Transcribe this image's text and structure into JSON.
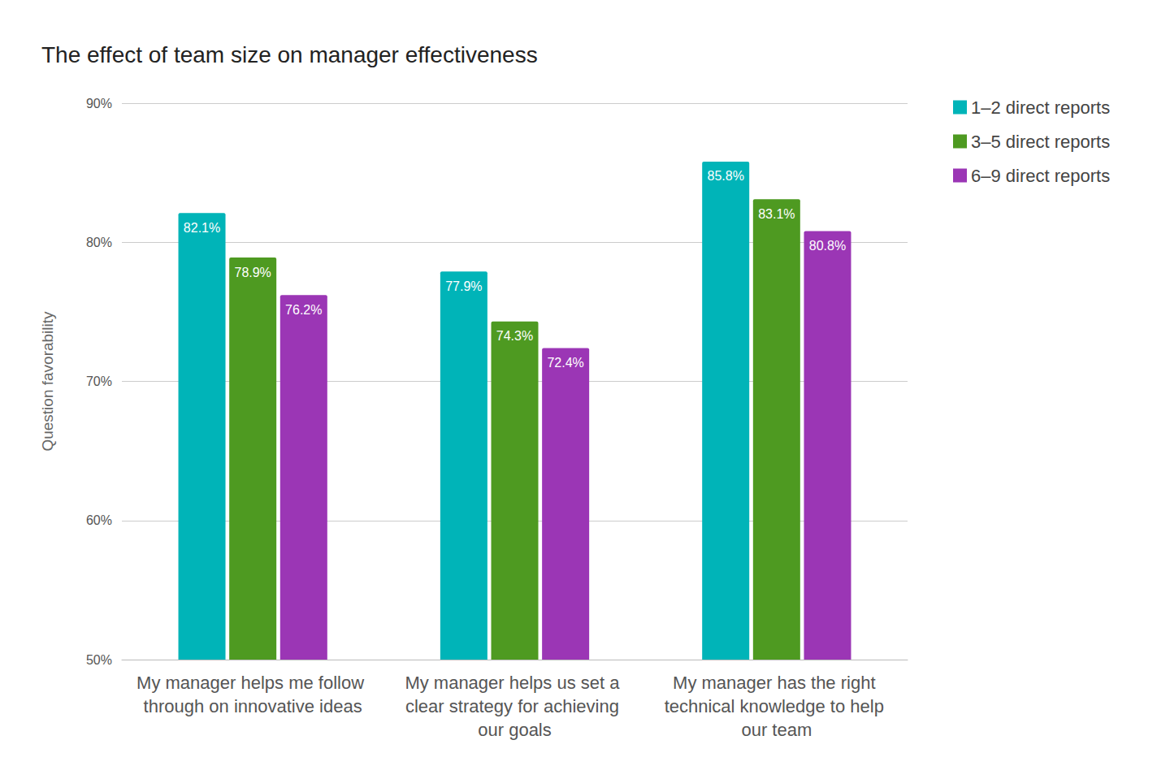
{
  "chart_data": {
    "type": "bar",
    "title": "The effect of team size on manager effectiveness",
    "y_label": "Question favorability",
    "categories": [
      "My manager helps me follow through on innovative ideas",
      "My manager helps us set a clear strategy for achieving our goals",
      "My manager has the right technical knowledge to help our team"
    ],
    "series": [
      {
        "name": "1–2 direct reports",
        "color": "#00b4b8",
        "values": [
          82.1,
          77.9,
          85.8
        ],
        "value_labels": [
          "82.1%",
          "77.9%",
          "85.8%"
        ]
      },
      {
        "name": "3–5 direct reports",
        "color": "#4e9a21",
        "values": [
          78.9,
          74.3,
          83.1
        ],
        "value_labels": [
          "78.9%",
          "74.3%",
          "83.1%"
        ]
      },
      {
        "name": "6–9 direct reports",
        "color": "#9b36b5",
        "values": [
          76.2,
          72.4,
          80.8
        ],
        "value_labels": [
          "76.2%",
          "72.4%",
          "80.8%"
        ]
      }
    ],
    "ylim": [
      50,
      90
    ],
    "yticks": [
      {
        "value": 50,
        "label": "50%"
      },
      {
        "value": 60,
        "label": "60%"
      },
      {
        "value": 70,
        "label": "70%"
      },
      {
        "value": 80,
        "label": "80%"
      },
      {
        "value": 90,
        "label": "90%"
      }
    ],
    "grid": true,
    "legend": "top-right",
    "data_labels": true
  }
}
